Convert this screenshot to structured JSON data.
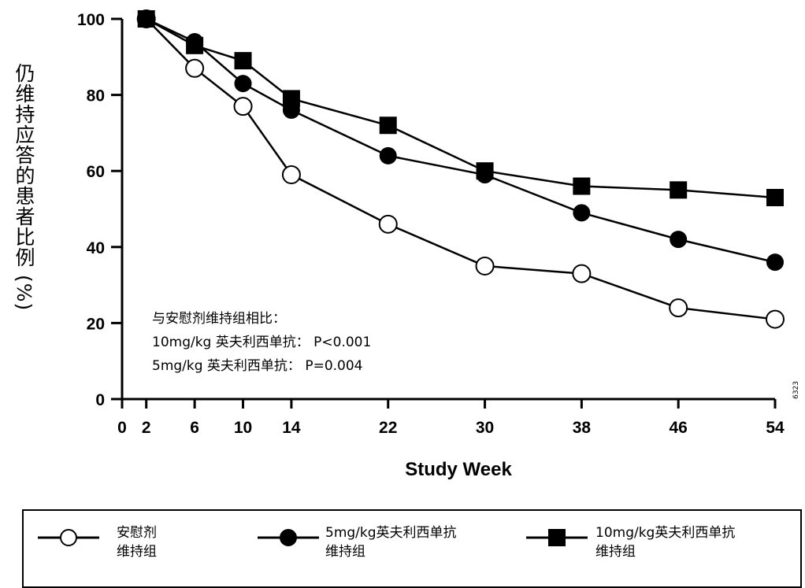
{
  "chart_data": {
    "type": "line",
    "title": "",
    "xlabel": "Study Week",
    "ylabel": "仍维持应答的患者比例 (%)",
    "x_ticks": [
      0,
      2,
      6,
      10,
      14,
      22,
      30,
      38,
      46,
      54
    ],
    "y_ticks": [
      0,
      20,
      40,
      60,
      80,
      100
    ],
    "xlim": [
      0,
      54
    ],
    "ylim": [
      0,
      100
    ],
    "grid": false,
    "legend_placement": "bottom",
    "series": [
      {
        "name": "安慰剂维持组",
        "marker": "open-circle",
        "x": [
          2,
          6,
          10,
          14,
          22,
          30,
          38,
          46,
          54
        ],
        "values": [
          100,
          87,
          77,
          59,
          46,
          35,
          33,
          24,
          21
        ]
      },
      {
        "name": "5mg/kg英夫利西单抗维持组",
        "marker": "filled-circle",
        "x": [
          2,
          6,
          10,
          14,
          22,
          30,
          38,
          46,
          54
        ],
        "values": [
          100,
          94,
          83,
          76,
          64,
          59,
          49,
          42,
          36
        ]
      },
      {
        "name": "10mg/kg英夫利西单抗维持组",
        "marker": "filled-square",
        "x": [
          2,
          6,
          10,
          14,
          22,
          30,
          38,
          46,
          54
        ],
        "values": [
          100,
          93,
          89,
          79,
          72,
          60,
          56,
          55,
          53
        ]
      }
    ],
    "annotation": {
      "line1": "与安慰剂维持组相比：",
      "line2": "10mg/kg 英夫利西单抗：  P<0.001",
      "line3": "5mg/kg 英夫利西单抗：  P=0.004"
    },
    "figure_id": "6323"
  },
  "legend": {
    "items": [
      {
        "line1": "安慰剂",
        "line2": "维持组"
      },
      {
        "line1": "5mg/kg英夫利西单抗",
        "line2": "维持组"
      },
      {
        "line1": "10mg/kg英夫利西单抗",
        "line2": "维持组"
      }
    ]
  },
  "colors": {
    "ink": "#000000",
    "background": "#ffffff"
  }
}
